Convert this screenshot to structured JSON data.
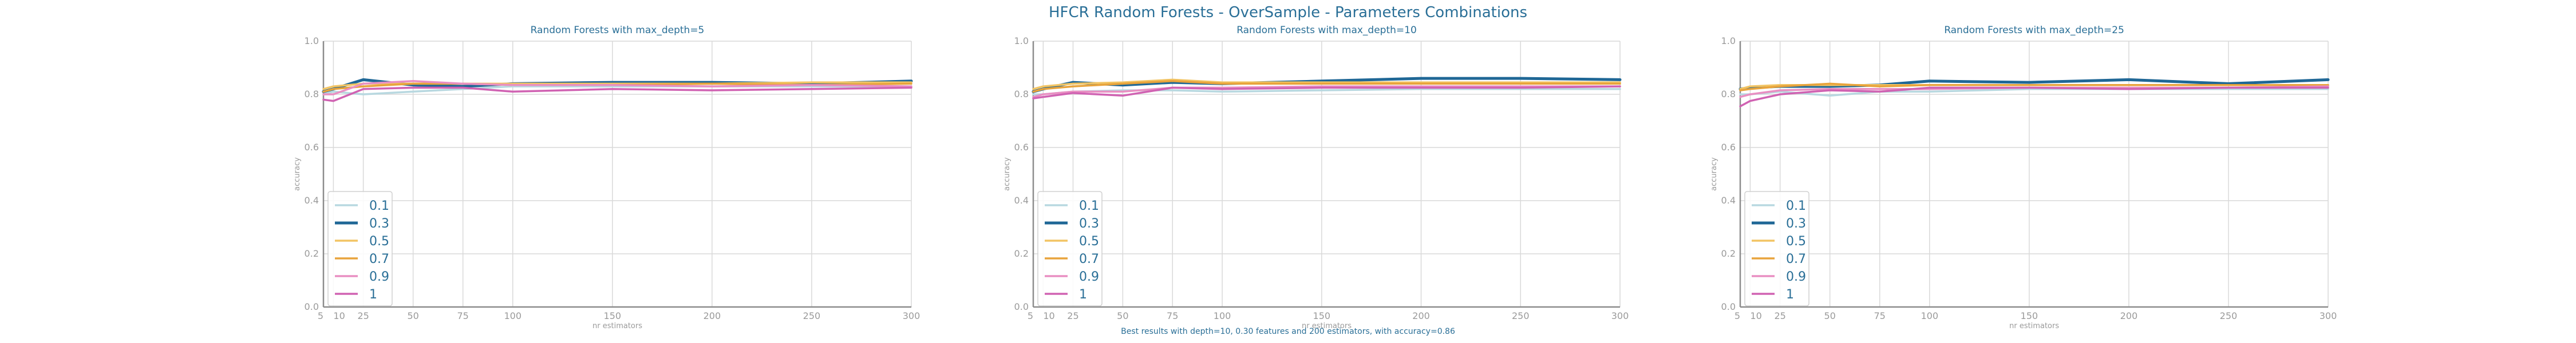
{
  "figure": {
    "title": "HFCR Random Forests - OverSample - Parameters Combinations",
    "caption": "Best results with depth=10, 0.30 features and 200 estimators, with accuracy=0.86"
  },
  "chart_data": [
    {
      "type": "line",
      "title": "Random Forests with max_depth=5",
      "xlabel": "nr estimators",
      "ylabel": "accuracy",
      "xlim": [
        5,
        300
      ],
      "ylim": [
        0,
        1
      ],
      "x": [
        5,
        10,
        25,
        50,
        75,
        100,
        150,
        200,
        250,
        300
      ],
      "x_ticks": [
        "5",
        "10",
        "25",
        "50",
        "75",
        "100",
        "150",
        "200",
        "250",
        "300"
      ],
      "y_ticks": [
        "0.0",
        "0.2",
        "0.4",
        "0.6",
        "0.8",
        "1.0"
      ],
      "grid": true,
      "legend_position": "lower-left",
      "series": [
        {
          "name": "0.1",
          "color": "#b8d8e0",
          "values": [
            0.8,
            0.81,
            0.8,
            0.81,
            0.82,
            0.83,
            0.83,
            0.83,
            0.83,
            0.83
          ]
        },
        {
          "name": "0.3",
          "color": "#1f6796",
          "values": [
            0.81,
            0.82,
            0.855,
            0.835,
            0.83,
            0.84,
            0.845,
            0.845,
            0.84,
            0.85
          ]
        },
        {
          "name": "0.5",
          "color": "#f2c463",
          "values": [
            0.82,
            0.83,
            0.84,
            0.84,
            0.84,
            0.84,
            0.84,
            0.84,
            0.845,
            0.845
          ]
        },
        {
          "name": "0.7",
          "color": "#e8a33b",
          "values": [
            0.81,
            0.82,
            0.83,
            0.84,
            0.84,
            0.835,
            0.835,
            0.84,
            0.835,
            0.84
          ]
        },
        {
          "name": "0.9",
          "color": "#e98fc2",
          "values": [
            0.8,
            0.8,
            0.84,
            0.85,
            0.84,
            0.835,
            0.835,
            0.83,
            0.835,
            0.83
          ]
        },
        {
          "name": "1",
          "color": "#d062b2",
          "values": [
            0.78,
            0.775,
            0.82,
            0.825,
            0.825,
            0.81,
            0.82,
            0.815,
            0.82,
            0.825
          ]
        }
      ]
    },
    {
      "type": "line",
      "title": "Random Forests with max_depth=10",
      "xlabel": "nr estimators",
      "ylabel": "accuracy",
      "xlim": [
        5,
        300
      ],
      "ylim": [
        0,
        1
      ],
      "x": [
        5,
        10,
        25,
        50,
        75,
        100,
        150,
        200,
        250,
        300
      ],
      "x_ticks": [
        "5",
        "10",
        "25",
        "50",
        "75",
        "100",
        "150",
        "200",
        "250",
        "300"
      ],
      "y_ticks": [
        "0.0",
        "0.2",
        "0.4",
        "0.6",
        "0.8",
        "1.0"
      ],
      "grid": true,
      "legend_position": "lower-left",
      "series": [
        {
          "name": "0.1",
          "color": "#b8d8e0",
          "values": [
            0.8,
            0.8,
            0.81,
            0.815,
            0.815,
            0.81,
            0.815,
            0.82,
            0.82,
            0.82
          ]
        },
        {
          "name": "0.3",
          "color": "#1f6796",
          "values": [
            0.81,
            0.82,
            0.845,
            0.835,
            0.845,
            0.84,
            0.85,
            0.86,
            0.86,
            0.855
          ]
        },
        {
          "name": "0.5",
          "color": "#f2c463",
          "values": [
            0.82,
            0.83,
            0.84,
            0.845,
            0.855,
            0.845,
            0.845,
            0.845,
            0.845,
            0.845
          ]
        },
        {
          "name": "0.7",
          "color": "#e8a33b",
          "values": [
            0.81,
            0.82,
            0.83,
            0.84,
            0.85,
            0.84,
            0.84,
            0.84,
            0.84,
            0.84
          ]
        },
        {
          "name": "0.9",
          "color": "#e98fc2",
          "values": [
            0.79,
            0.8,
            0.81,
            0.81,
            0.825,
            0.825,
            0.83,
            0.83,
            0.83,
            0.83
          ]
        },
        {
          "name": "1",
          "color": "#d062b2",
          "values": [
            0.785,
            0.79,
            0.805,
            0.795,
            0.825,
            0.82,
            0.825,
            0.825,
            0.825,
            0.83
          ]
        }
      ]
    },
    {
      "type": "line",
      "title": "Random Forests with max_depth=25",
      "xlabel": "nr estimators",
      "ylabel": "accuracy",
      "xlim": [
        5,
        300
      ],
      "ylim": [
        0,
        1
      ],
      "x": [
        5,
        10,
        25,
        50,
        75,
        100,
        150,
        200,
        250,
        300
      ],
      "x_ticks": [
        "5",
        "10",
        "25",
        "50",
        "75",
        "100",
        "150",
        "200",
        "250",
        "300"
      ],
      "y_ticks": [
        "0.0",
        "0.2",
        "0.4",
        "0.6",
        "0.8",
        "1.0"
      ],
      "grid": true,
      "legend_position": "lower-left",
      "series": [
        {
          "name": "0.1",
          "color": "#b8d8e0",
          "values": [
            0.8,
            0.8,
            0.81,
            0.795,
            0.81,
            0.81,
            0.82,
            0.82,
            0.82,
            0.82
          ]
        },
        {
          "name": "0.3",
          "color": "#1f6796",
          "values": [
            0.82,
            0.825,
            0.83,
            0.83,
            0.835,
            0.85,
            0.845,
            0.855,
            0.84,
            0.855
          ]
        },
        {
          "name": "0.5",
          "color": "#f2c463",
          "values": [
            0.82,
            0.83,
            0.835,
            0.835,
            0.835,
            0.835,
            0.835,
            0.835,
            0.835,
            0.835
          ]
        },
        {
          "name": "0.7",
          "color": "#e8a33b",
          "values": [
            0.815,
            0.82,
            0.83,
            0.84,
            0.83,
            0.835,
            0.835,
            0.835,
            0.835,
            0.835
          ]
        },
        {
          "name": "0.9",
          "color": "#e98fc2",
          "values": [
            0.79,
            0.8,
            0.815,
            0.82,
            0.82,
            0.82,
            0.825,
            0.825,
            0.825,
            0.83
          ]
        },
        {
          "name": "1",
          "color": "#d062b2",
          "values": [
            0.755,
            0.775,
            0.8,
            0.815,
            0.81,
            0.825,
            0.825,
            0.82,
            0.825,
            0.825
          ]
        }
      ]
    }
  ]
}
